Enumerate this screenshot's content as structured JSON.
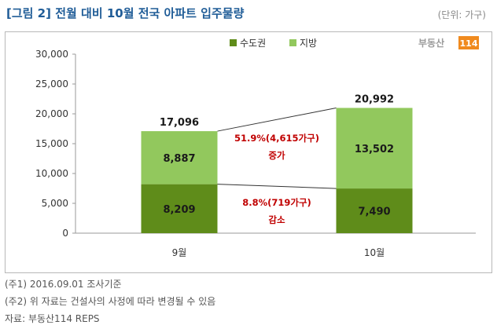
{
  "title": "[그림 2] 전월 대비 10월 전국 아파트 입주물량",
  "unit": "(단위: 가구)",
  "logo": {
    "text": "부동산",
    "number": "114"
  },
  "chart_data": {
    "type": "bar",
    "stacked": true,
    "categories": [
      "9월",
      "10월"
    ],
    "series": [
      {
        "name": "수도권",
        "values": [
          8209,
          7490
        ],
        "labels": [
          "8,209",
          "7,490"
        ],
        "color": "#5f8c1a"
      },
      {
        "name": "지방",
        "values": [
          8887,
          13502
        ],
        "labels": [
          "8,887",
          "13,502"
        ],
        "color": "#92c85d"
      }
    ],
    "totals": [
      17096,
      20992
    ],
    "total_labels": [
      "17,096",
      "20,992"
    ],
    "ylim": [
      0,
      30000
    ],
    "yticks": [
      0,
      5000,
      10000,
      15000,
      20000,
      25000,
      30000
    ],
    "ytick_labels": [
      "0",
      "5,000",
      "10,000",
      "15,000",
      "20,000",
      "25,000",
      "30,000"
    ],
    "legend_position": "top",
    "grid": false,
    "annotations": [
      {
        "line1": "51.9%(4,615가구)",
        "line2": "증가"
      },
      {
        "line1": "8.8%(719가구)",
        "line2": "감소"
      }
    ]
  },
  "notes": [
    "(주1) 2016.09.01 조사기준",
    "(주2) 위 자료는 건설사의 사정에 따라 변경될 수 있음",
    "자료: 부동산114 REPS"
  ]
}
